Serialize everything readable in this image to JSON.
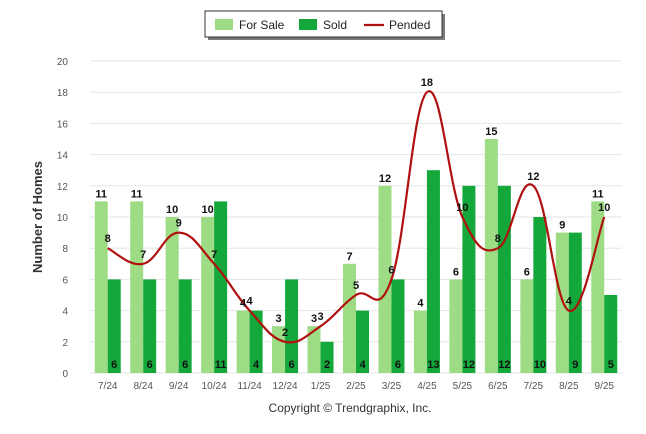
{
  "chart_data": {
    "type": "bar",
    "categories": [
      "7/24",
      "8/24",
      "9/24",
      "10/24",
      "11/24",
      "12/24",
      "1/25",
      "2/25",
      "3/25",
      "4/25",
      "5/25",
      "6/25",
      "7/25",
      "8/25",
      "9/25"
    ],
    "series": [
      {
        "name": "For Sale",
        "kind": "bar",
        "color": "#9ddc85",
        "values": [
          11,
          11,
          10,
          10,
          4,
          3,
          3,
          7,
          12,
          4,
          6,
          15,
          6,
          9,
          11
        ]
      },
      {
        "name": "Sold",
        "kind": "bar",
        "color": "#14a83a",
        "values": [
          6,
          6,
          6,
          11,
          4,
          6,
          2,
          4,
          6,
          13,
          12,
          12,
          10,
          9,
          5
        ]
      },
      {
        "name": "Pended",
        "kind": "line",
        "color": "#b01010",
        "values": [
          8,
          7,
          9,
          7,
          4,
          2,
          3,
          5,
          6,
          18,
          10,
          8,
          12,
          4,
          10
        ]
      }
    ],
    "ylabel": "Number of Homes",
    "xlabel": "",
    "ylim": [
      0,
      20
    ],
    "yticks": [
      0,
      2,
      4,
      6,
      8,
      10,
      12,
      14,
      16,
      18,
      20
    ],
    "grid": true,
    "legend_position": "top-center",
    "copyright": "Copyright © Trendgraphix, Inc."
  }
}
